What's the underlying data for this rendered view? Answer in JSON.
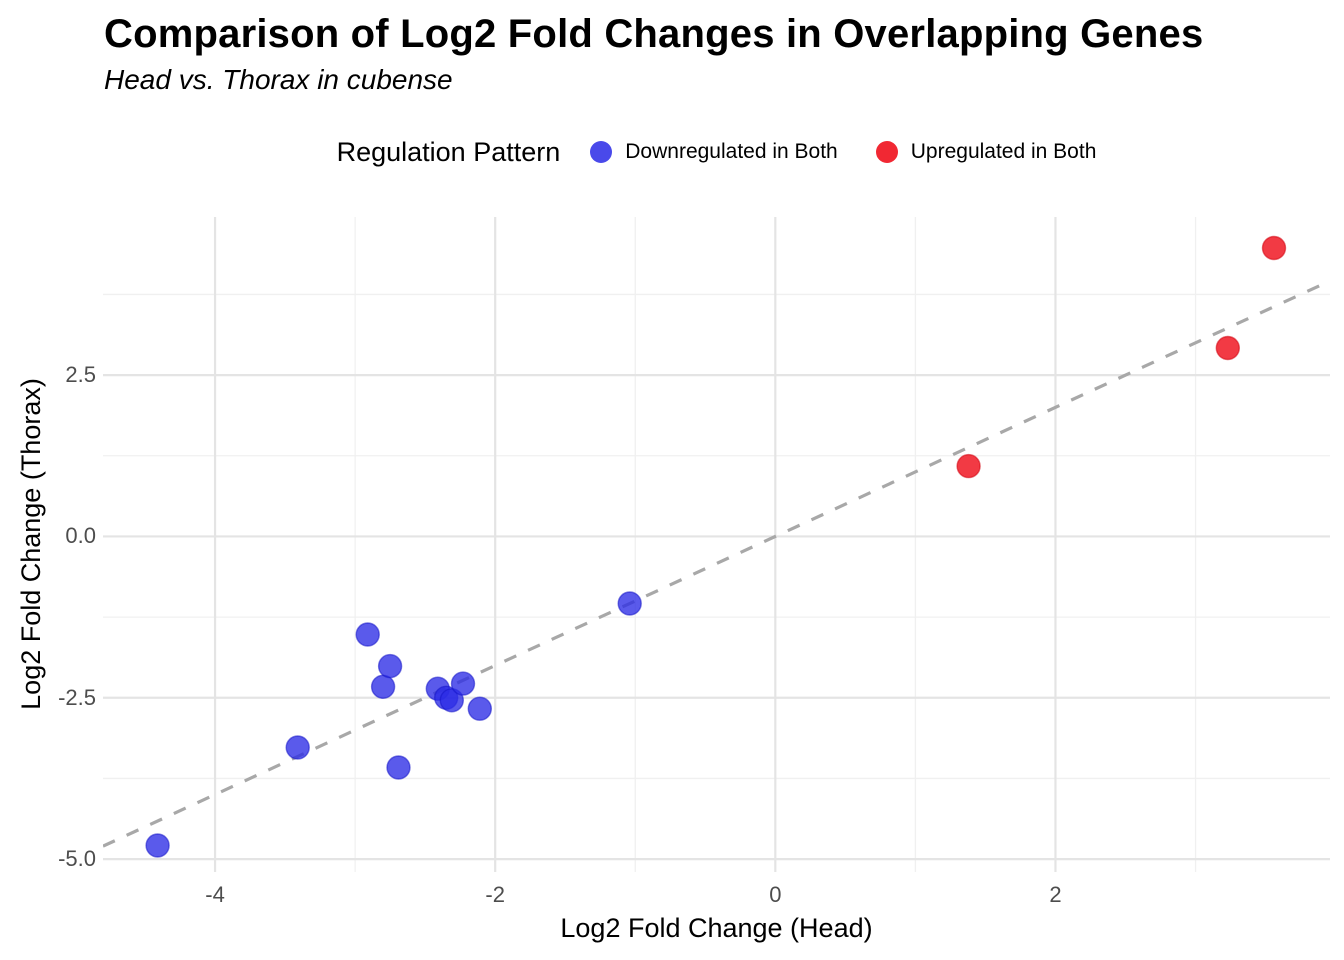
{
  "title": "Comparison of Log2 Fold Changes in Overlapping Genes",
  "subtitle": "Head vs. Thorax in cubense",
  "legend": {
    "title": "Regulation Pattern",
    "items": [
      {
        "label": "Downregulated in Both",
        "key": "downregulated",
        "color": "#2B2BE6",
        "fill_opacity": 0.78,
        "stroke": "#1515C8"
      },
      {
        "label": "Upregulated in Both",
        "key": "upregulated",
        "color": "#F01823",
        "fill_opacity": 0.85,
        "stroke": "#D2000C"
      }
    ]
  },
  "chart_data": {
    "type": "scatter",
    "title": "Comparison of Log2 Fold Changes in Overlapping Genes",
    "subtitle": "Head vs. Thorax in cubense",
    "xlabel": "Log2 Fold Change (Head)",
    "ylabel": "Log2 Fold Change (Thorax)",
    "xlim": [
      -4.8,
      3.96
    ],
    "ylim": [
      -5.2,
      4.95
    ],
    "x_major_ticks": [
      -4,
      -2,
      0,
      2
    ],
    "x_tick_labels": [
      "-4",
      "-2",
      "0",
      "2"
    ],
    "x_minor_ticks": [
      -3,
      -1,
      1,
      3
    ],
    "y_major_ticks": [
      2.5,
      0.0,
      -2.5,
      -5.0
    ],
    "y_tick_labels": [
      "2.5",
      "0.0",
      "-2.5",
      "-5.0"
    ],
    "y_minor_ticks": [
      3.75,
      1.25,
      -1.25,
      -3.75
    ],
    "grid": true,
    "legend_position": "top",
    "reference_line": {
      "type": "identity",
      "slope": 1,
      "intercept": 0,
      "style": "dashed",
      "color": "#A8A8A8",
      "width": 3.2,
      "dash": "13 13"
    },
    "point_radius": 11.5,
    "grid_major_color": "#E4E4E4",
    "grid_minor_color": "#F0F0F0",
    "series": [
      {
        "name": "Downregulated in Both",
        "color": "#2B2BE6",
        "points": [
          [
            -4.41,
            -4.79
          ],
          [
            -3.41,
            -3.27
          ],
          [
            -2.91,
            -1.52
          ],
          [
            -2.8,
            -2.33
          ],
          [
            -2.75,
            -2.01
          ],
          [
            -2.69,
            -3.58
          ],
          [
            -2.41,
            -2.36
          ],
          [
            -2.35,
            -2.5
          ],
          [
            -2.31,
            -2.54
          ],
          [
            -2.23,
            -2.28
          ],
          [
            -2.11,
            -2.67
          ],
          [
            -1.04,
            -1.04
          ]
        ]
      },
      {
        "name": "Upregulated in Both",
        "color": "#F01823",
        "points": [
          [
            1.38,
            1.09
          ],
          [
            3.23,
            2.92
          ],
          [
            3.56,
            4.47
          ]
        ]
      }
    ]
  }
}
